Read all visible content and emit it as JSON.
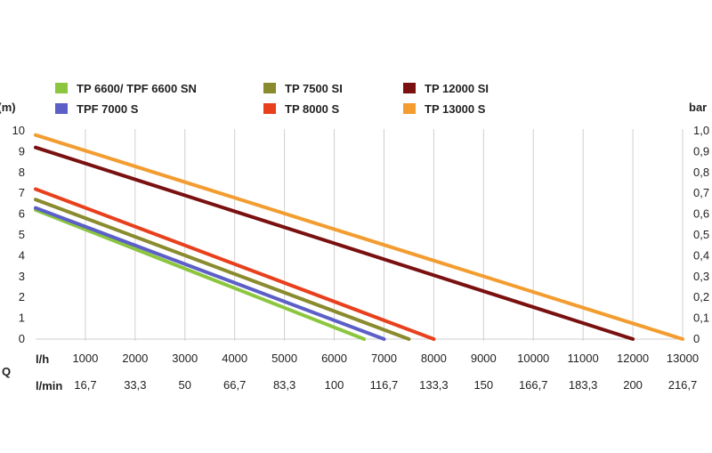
{
  "chart_data": {
    "type": "line",
    "y_left_label": "H(m)",
    "y_right_label": "bar",
    "q_label": "Q",
    "lh_label": "l/h",
    "lmin_label": "l/min",
    "ylim": [
      0,
      10
    ],
    "xlim": [
      0,
      13000
    ],
    "y_left_ticks": [
      "0",
      "1",
      "2",
      "3",
      "4",
      "5",
      "6",
      "7",
      "8",
      "9",
      "10"
    ],
    "y_right_ticks": [
      "0",
      "0,1",
      "0,2",
      "0,3",
      "0,4",
      "0,5",
      "0,6",
      "0,7",
      "0,8",
      "0,9",
      "1,0"
    ],
    "x_lh_ticks": [
      "1000",
      "2000",
      "3000",
      "4000",
      "5000",
      "6000",
      "7000",
      "8000",
      "9000",
      "10000",
      "11000",
      "12000",
      "13000"
    ],
    "x_lmin_ticks": [
      "16,7",
      "33,3",
      "50",
      "66,7",
      "83,3",
      "100",
      "116,7",
      "133,3",
      "150",
      "166,7",
      "183,3",
      "200",
      "216,7"
    ],
    "grid": "vertical",
    "legend_position": "top",
    "series": [
      {
        "name": "TP 6600/ TPF 6600 SN",
        "color": "#8cc63f",
        "x": [
          0,
          6600
        ],
        "y": [
          6.2,
          0
        ]
      },
      {
        "name": "TPF 7000 S",
        "color": "#5b5fc7",
        "x": [
          0,
          7000
        ],
        "y": [
          6.3,
          0
        ]
      },
      {
        "name": "TP 7500 SI",
        "color": "#8a8a2e",
        "x": [
          0,
          7500
        ],
        "y": [
          6.7,
          0
        ]
      },
      {
        "name": "TP 8000 S",
        "color": "#e8401c",
        "x": [
          0,
          8000
        ],
        "y": [
          7.2,
          0
        ]
      },
      {
        "name": "TP 12000 SI",
        "color": "#7a1010",
        "x": [
          0,
          12000
        ],
        "y": [
          9.2,
          0
        ]
      },
      {
        "name": "TP 13000 S",
        "color": "#f39c30",
        "x": [
          0,
          13000
        ],
        "y": [
          9.8,
          0
        ]
      }
    ]
  }
}
